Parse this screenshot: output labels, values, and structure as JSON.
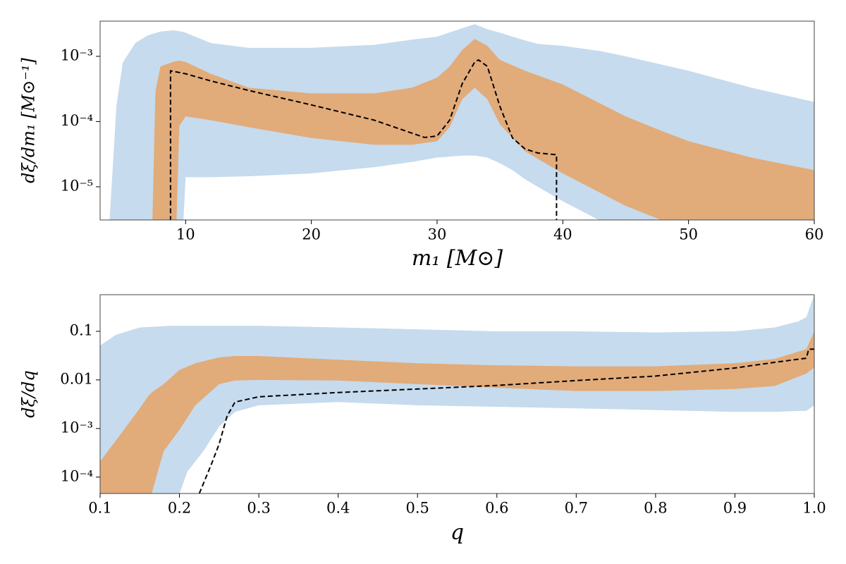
{
  "chart_data": [
    {
      "type": "line",
      "log_y": true,
      "xlabel": "m₁ [M⊙]",
      "ylabel": "dξ/dm₁ [M⊙⁻¹]",
      "xlim": [
        3.2,
        60
      ],
      "xticks": [
        10,
        20,
        30,
        40,
        50,
        60
      ],
      "ylim": [
        3.1e-06,
        0.00346
      ],
      "yticks": [
        {
          "value": 1e-05,
          "label": "10⁻⁵"
        },
        {
          "value": 0.0001,
          "label": "10⁻⁴"
        },
        {
          "value": 0.001,
          "label": "10⁻³"
        }
      ],
      "series": [
        {
          "color": "#c6dbed",
          "x": [
            3.8,
            4.5,
            5,
            6,
            7,
            8,
            9,
            9.7,
            10,
            12,
            15,
            20,
            25,
            28,
            30,
            32,
            33,
            34,
            35,
            36,
            37,
            38,
            40,
            43,
            45,
            50,
            55,
            60
          ],
          "upper": [
            1e-06,
            0.000175,
            0.0008,
            0.0016,
            0.0021,
            0.0024,
            0.0025,
            0.0024,
            0.0023,
            0.0016,
            0.00135,
            0.00135,
            0.0015,
            0.0018,
            0.002,
            0.0027,
            0.0031,
            0.0026,
            0.0023,
            0.002,
            0.00175,
            0.00155,
            0.00145,
            0.0012,
            0.001,
            0.0006,
            0.00033,
            0.0002
          ],
          "lower": [
            1e-06,
            1e-06,
            1e-06,
            1e-06,
            1e-06,
            1e-06,
            1e-06,
            1e-06,
            1.4e-05,
            1.4e-05,
            1.45e-05,
            1.6e-05,
            2e-05,
            2.4e-05,
            2.8e-05,
            3e-05,
            3e-05,
            2.8e-05,
            2.3e-05,
            1.8e-05,
            1.3e-05,
            1e-05,
            6e-06,
            3e-06,
            1e-06,
            1e-06,
            1e-06,
            1e-06
          ]
        },
        {
          "color": "#e2ab7a",
          "x": [
            7.3,
            7.6,
            8,
            9,
            9.2,
            9.5,
            10,
            12,
            15,
            20,
            25,
            28,
            30,
            31,
            32,
            33,
            34,
            35,
            37,
            40,
            45,
            48,
            50,
            55,
            60
          ],
          "upper": [
            1e-06,
            0.00029,
            0.0007,
            0.00082,
            0.00084,
            0.00086,
            0.00082,
            0.00054,
            0.00033,
            0.00027,
            0.00027,
            0.00033,
            0.00047,
            0.0007,
            0.00125,
            0.00185,
            0.00145,
            0.00088,
            0.0006,
            0.00037,
            0.00012,
            7e-05,
            5e-05,
            2.8e-05,
            1.8e-05
          ],
          "lower": [
            1e-06,
            1e-06,
            1e-06,
            1e-06,
            1e-06,
            8.6e-05,
            0.00012,
            0.000105,
            8.2e-05,
            5.6e-05,
            4.4e-05,
            4.4e-05,
            5e-05,
            8.2e-05,
            0.00022,
            0.00033,
            0.00022,
            9e-05,
            3.5e-05,
            1.6e-05,
            5.1e-06,
            3e-06,
            1e-06,
            1e-06,
            1e-06
          ]
        },
        {
          "color": "#000000",
          "dashed": true,
          "x": [
            8.8,
            8.8,
            10,
            12,
            15,
            20,
            25,
            29,
            30,
            31,
            32,
            33,
            33.3,
            34,
            35,
            36,
            37,
            38,
            39.5,
            39.5
          ],
          "values": [
            1e-06,
            0.0006,
            0.00054,
            0.00042,
            0.0003,
            0.00018,
            0.000105,
            5.7e-05,
            6e-05,
            0.000105,
            0.00038,
            0.00082,
            0.00088,
            0.0007,
            0.00017,
            5.6e-05,
            3.8e-05,
            3.3e-05,
            3.1e-05,
            1e-06
          ]
        }
      ]
    },
    {
      "type": "line",
      "log_y": true,
      "xlabel": "q",
      "ylabel": "dξ/dq",
      "xlim": [
        0.1,
        1.0
      ],
      "xticks": [
        0.1,
        0.2,
        0.3,
        0.4,
        0.5,
        0.6,
        0.7,
        0.8,
        0.9,
        {
          "value": 1,
          "label": "1.0"
        }
      ],
      "ylim": [
        4.6e-05,
        0.567
      ],
      "yticks": [
        {
          "value": 0.0001,
          "label": "10⁻⁴"
        },
        {
          "value": 0.001,
          "label": "10⁻³"
        },
        0.01,
        0.1
      ],
      "series": [
        {
          "color": "#c6dbed",
          "x": [
            0.1,
            0.12,
            0.15,
            0.19,
            0.2,
            0.21,
            0.23,
            0.25,
            0.27,
            0.3,
            0.4,
            0.5,
            0.6,
            0.7,
            0.8,
            0.9,
            0.95,
            0.98,
            0.99,
            1.0
          ],
          "upper": [
            0.051,
            0.085,
            0.12,
            0.13,
            0.13,
            0.13,
            0.13,
            0.13,
            0.13,
            0.13,
            0.12,
            0.11,
            0.1,
            0.1,
            0.095,
            0.1,
            0.12,
            0.16,
            0.195,
            0.57
          ],
          "lower": [
            1e-06,
            1e-06,
            1e-06,
            1e-06,
            4.6e-05,
            0.00013,
            0.00034,
            0.0011,
            0.0022,
            0.003,
            0.0035,
            0.003,
            0.0028,
            0.0026,
            0.0024,
            0.0022,
            0.0022,
            0.0023,
            0.0023,
            0.003
          ]
        },
        {
          "color": "#e2ab7a",
          "x": [
            0.1,
            0.12,
            0.15,
            0.16,
            0.165,
            0.18,
            0.2,
            0.22,
            0.25,
            0.27,
            0.3,
            0.4,
            0.5,
            0.6,
            0.7,
            0.8,
            0.9,
            0.95,
            0.99,
            1.0
          ],
          "upper": [
            0.00021,
            0.00057,
            0.0026,
            0.0045,
            0.0055,
            0.0082,
            0.016,
            0.022,
            0.029,
            0.031,
            0.031,
            0.026,
            0.022,
            0.02,
            0.019,
            0.019,
            0.022,
            0.027,
            0.043,
            0.1
          ],
          "lower": [
            1e-06,
            1e-06,
            1e-06,
            1e-06,
            4.6e-05,
            0.00034,
            0.00094,
            0.003,
            0.0082,
            0.0097,
            0.01,
            0.0097,
            0.0082,
            0.0069,
            0.0059,
            0.0059,
            0.0065,
            0.0075,
            0.0135,
            0.018
          ]
        },
        {
          "color": "#000000",
          "dashed": true,
          "x": [
            0.225,
            0.24,
            0.25,
            0.26,
            0.27,
            0.3,
            0.4,
            0.5,
            0.6,
            0.7,
            0.8,
            0.9,
            0.95,
            0.99,
            0.993,
            1.0
          ],
          "values": [
            4.6e-05,
            0.00018,
            0.00048,
            0.0018,
            0.0035,
            0.0045,
            0.0055,
            0.0065,
            0.0077,
            0.0097,
            0.012,
            0.0176,
            0.023,
            0.028,
            0.043,
            0.043
          ]
        }
      ]
    }
  ]
}
